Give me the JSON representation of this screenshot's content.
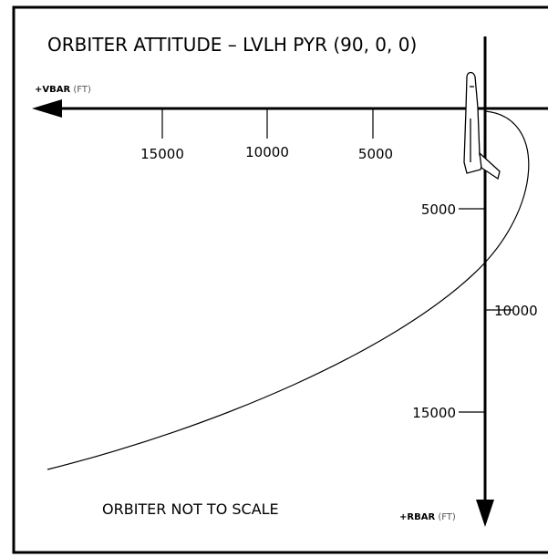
{
  "title": "ORBITER ATTITUDE – LVLH PYR (90, 0, 0)",
  "axes": {
    "vbar": {
      "label": "+VBAR",
      "unit": "(FT)",
      "ticks": [
        "15000",
        "10000",
        "5000"
      ]
    },
    "rbar": {
      "label": "+RBAR",
      "unit": "(FT)",
      "ticks": [
        "5000",
        "10000",
        "15000"
      ]
    }
  },
  "note": "ORBITER NOT TO SCALE"
}
